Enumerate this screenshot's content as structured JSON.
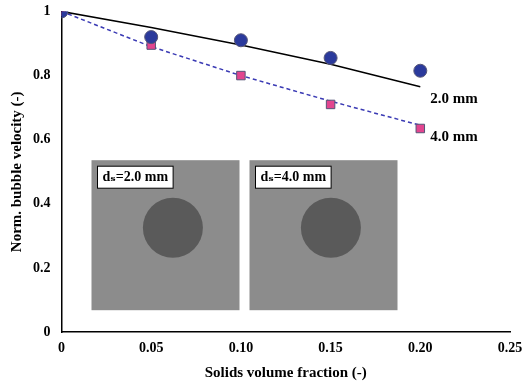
{
  "chart_data": {
    "type": "scatter",
    "x_label": "Solids volume fraction (-)",
    "y_label": "Norm. bubble velocity (-)",
    "x": [
      0,
      0.05,
      0.1,
      0.15,
      0.2
    ],
    "series": [
      {
        "type": "scatter",
        "marker": "circle",
        "color": "#2b3a9c",
        "values": [
          1.0,
          0.92,
          0.91,
          0.855,
          0.815
        ]
      },
      {
        "type": "scatter",
        "marker": "square",
        "color": "#e2458f",
        "values": [
          1.0,
          0.895,
          0.8,
          0.71,
          0.635
        ]
      },
      {
        "name": "2.0 mm",
        "type": "line",
        "line_style": "solid",
        "color": "#000000",
        "values": [
          1.0,
          0.95,
          0.895,
          0.835,
          0.765
        ]
      },
      {
        "name": "4.0 mm",
        "type": "line",
        "line_style": "dashed",
        "color": "#3a3ab4",
        "values": [
          1.0,
          0.89,
          0.8,
          0.72,
          0.645
        ]
      }
    ],
    "annotations": [
      {
        "text": "dₛ=2.0 mm"
      },
      {
        "text": "dₛ=4.0 mm"
      }
    ],
    "xlim": [
      0,
      0.25
    ],
    "xticks": [
      0,
      0.05,
      {
        "value": 0.1,
        "label": "0.10"
      },
      0.15,
      {
        "value": 0.2,
        "label": "0.20"
      },
      0.25
    ],
    "ylim": [
      0,
      1
    ],
    "yticks": [
      0,
      0.2,
      0.4,
      0.6,
      0.8,
      1
    ],
    "grid": false
  }
}
